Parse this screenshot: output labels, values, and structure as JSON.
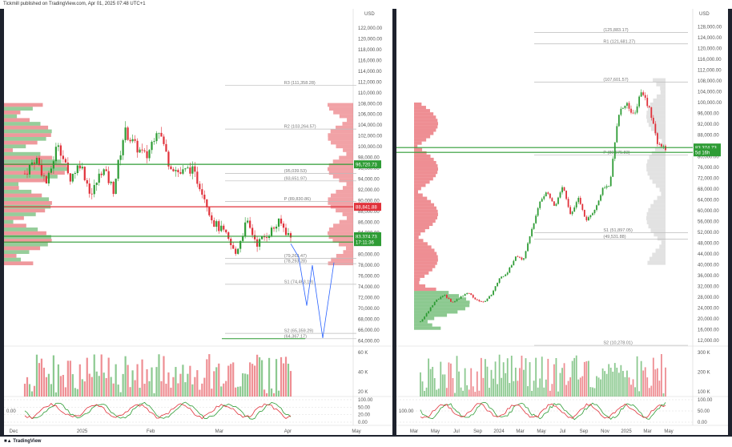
{
  "header": {
    "publisher": "Tickmill published on TradingView.com, Apr 01, 2025 07:48 UTC+1"
  },
  "footer": {
    "brand": "TradingView"
  },
  "colors": {
    "up": "#2e9c35",
    "down": "#e0313a",
    "accent_blue": "#2962ff",
    "level_green": "#2e9c35",
    "level_red": "#e0313a"
  },
  "left_chart": {
    "currency": "USD",
    "price_ticks": [
      "122,000.00",
      "120,000.00",
      "118,000.00",
      "116,000.00",
      "114,000.00",
      "112,000.00",
      "110,000.00",
      "108,000.00",
      "106,000.00",
      "104,000.00",
      "102,000.00",
      "100,000.00",
      "98,000.00",
      "96,000.00",
      "94,000.00",
      "92,000.00",
      "90,000.00",
      "88,000.00",
      "86,000.00",
      "84,000.00",
      "82,000.00",
      "80,000.00",
      "78,000.00",
      "76,000.00",
      "74,000.00",
      "72,000.00",
      "70,000.00",
      "68,000.00",
      "66,000.00",
      "64,000.00"
    ],
    "price_ticks_num": [
      122000,
      120000,
      118000,
      116000,
      114000,
      112000,
      110000,
      108000,
      106000,
      104000,
      102000,
      100000,
      98000,
      96000,
      94000,
      92000,
      90000,
      88000,
      86000,
      84000,
      82000,
      80000,
      78000,
      76000,
      74000,
      72000,
      70000,
      68000,
      66000,
      64000
    ],
    "price_range": [
      63000,
      123500
    ],
    "time_labels": [
      "Dec",
      "2025",
      "Feb",
      "Mar",
      "Apr",
      "May"
    ],
    "levels": [
      {
        "label": "R3 (111,358.28)",
        "price": 111358
      },
      {
        "label": "R2 (103,264.57)",
        "price": 103264
      },
      {
        "label": "P (89,830.86)",
        "price": 89830
      },
      {
        "label": "(93,651.97)",
        "price": 93651
      },
      {
        "label": "(95,039.53)",
        "price": 95039
      },
      {
        "label": "S1 (74,463.19)",
        "price": 74463
      },
      {
        "label": "S2 (65,359.29)",
        "price": 65359
      },
      {
        "label": "(64,367.17)",
        "price": 64367
      },
      {
        "label": "(78,293.28)",
        "price": 78293
      },
      {
        "label": "(79,263.47)",
        "price": 79263
      }
    ],
    "tags": [
      {
        "text": "96,720.73",
        "price": 96720,
        "color": "#2e9c35"
      },
      {
        "text": "88,841.88",
        "price": 88841,
        "color": "#e0313a"
      },
      {
        "text": "83,374.73",
        "price": 83374,
        "color": "#2e9c35"
      },
      {
        "text": "17:11:36",
        "price": 82300,
        "color": "#2e9c35"
      }
    ],
    "volume_ticks": [
      "60 K",
      "40 K",
      "20 K"
    ],
    "osc_ticks": [
      "100.00",
      "50.00",
      "20.00",
      "0.00"
    ],
    "osc_left": "0.00"
  },
  "right_chart": {
    "currency": "USD",
    "price_ticks": [
      "128,000.00",
      "124,000.00",
      "120,000.00",
      "116,000.00",
      "112,000.00",
      "108,000.00",
      "104,000.00",
      "100,000.00",
      "96,000.00",
      "92,000.00",
      "88,000.00",
      "84,000.00",
      "80,000.00",
      "76,000.00",
      "72,000.00",
      "68,000.00",
      "64,000.00",
      "60,000.00",
      "56,000.00",
      "52,000.00",
      "48,000.00",
      "44,000.00",
      "40,000.00",
      "36,000.00",
      "32,000.00",
      "28,000.00",
      "24,000.00",
      "20,000.00",
      "16,000.00",
      "12,000.00"
    ],
    "price_ticks_num": [
      128000,
      124000,
      120000,
      116000,
      112000,
      108000,
      104000,
      100000,
      96000,
      92000,
      88000,
      84000,
      80000,
      76000,
      72000,
      68000,
      64000,
      60000,
      56000,
      52000,
      48000,
      44000,
      40000,
      36000,
      32000,
      28000,
      24000,
      20000,
      16000,
      12000
    ],
    "price_range": [
      10000,
      130500
    ],
    "time_labels": [
      "Mar",
      "May",
      "Jul",
      "Sep",
      "2024",
      "Mar",
      "May",
      "Jul",
      "Sep",
      "Nov",
      "2025",
      "Mar",
      "May"
    ],
    "levels": [
      {
        "label": "(125,883.17)",
        "price": 125883
      },
      {
        "label": "R1 (121,681.27)",
        "price": 121681
      },
      {
        "label": "(107,601.57)",
        "price": 107601
      },
      {
        "label": "P (80,675.83)",
        "price": 80675
      },
      {
        "label": "S1 (51,897.05)",
        "price": 51897
      },
      {
        "label": "(49,531.88)",
        "price": 49531
      },
      {
        "label": "S2 (10,278.01)",
        "price": 10278
      }
    ],
    "tags": [
      {
        "text": "83,374.73",
        "price": 83374,
        "color": "#2e9c35"
      },
      {
        "text": "5d 16h",
        "price": 81600,
        "color": "#2e9c35"
      }
    ],
    "volume_ticks": [
      "300 K",
      "200 K",
      "100 K"
    ],
    "osc_ticks": [
      "100.00",
      "50.00",
      "0.00"
    ],
    "osc_left": "100.00"
  }
}
